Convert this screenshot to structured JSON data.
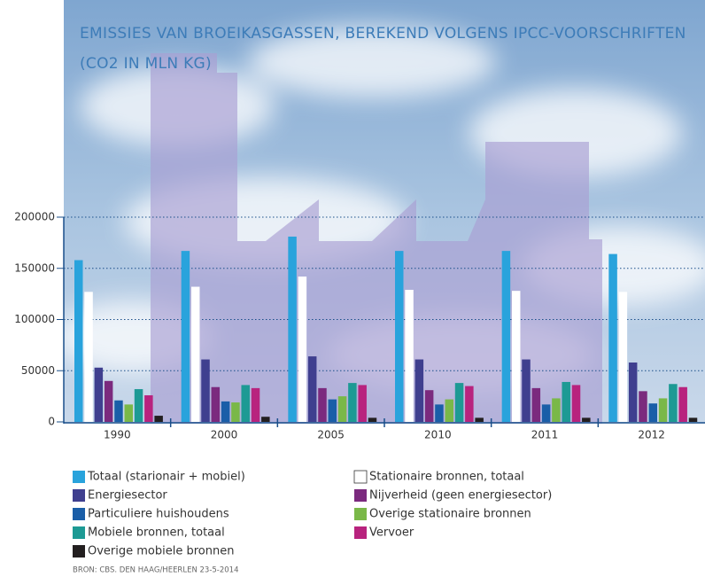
{
  "chart_data": {
    "type": "bar",
    "title": "EMISSIES VAN BROEIKASGASSEN, BEREKEND VOLGENS IPCC-VOORSCHRIFTEN",
    "subtitle": "(CO2 IN MLN KG)",
    "source": "BRON: CBS. DEN HAAG/HEERLEN 23-5-2014",
    "categories": [
      "1990",
      "2000",
      "2005",
      "2010",
      "2011",
      "2012"
    ],
    "series": [
      {
        "name": "Totaal (starionair + mobiel)",
        "color": "#29a3dc",
        "values": [
          158000,
          167000,
          181000,
          167000,
          167000,
          164000
        ]
      },
      {
        "name": "Stationaire bronnen, totaal",
        "color": "#ffffff",
        "values": [
          127000,
          132000,
          142000,
          129000,
          128000,
          127000
        ]
      },
      {
        "name": "Energiesector",
        "color": "#3f3f8f",
        "values": [
          53000,
          61000,
          64000,
          61000,
          61000,
          58000
        ]
      },
      {
        "name": "Nijverheid (geen energiesector)",
        "color": "#7b2a7e",
        "values": [
          40000,
          34000,
          33000,
          31000,
          33000,
          30000
        ]
      },
      {
        "name": "Particuliere huishoudens",
        "color": "#1a5ea8",
        "values": [
          21000,
          20000,
          22000,
          17000,
          17000,
          18000
        ]
      },
      {
        "name": "Overige stationaire bronnen",
        "color": "#7ab848",
        "values": [
          17000,
          19000,
          25000,
          22000,
          23000,
          23000
        ]
      },
      {
        "name": "Mobiele bronnen, totaal",
        "color": "#1d9a94",
        "values": [
          32000,
          36000,
          38000,
          38000,
          39000,
          37000
        ]
      },
      {
        "name": "Vervoer",
        "color": "#b8237e",
        "values": [
          26000,
          33000,
          36000,
          35000,
          36000,
          34000
        ]
      },
      {
        "name": "Overige mobiele bronnen",
        "color": "#231f20",
        "values": [
          6000,
          5000,
          4000,
          4000,
          4000,
          4000
        ]
      }
    ],
    "ylim": [
      0,
      200000
    ],
    "yticks": [
      0,
      50000,
      100000,
      150000,
      200000
    ],
    "grid": true
  }
}
